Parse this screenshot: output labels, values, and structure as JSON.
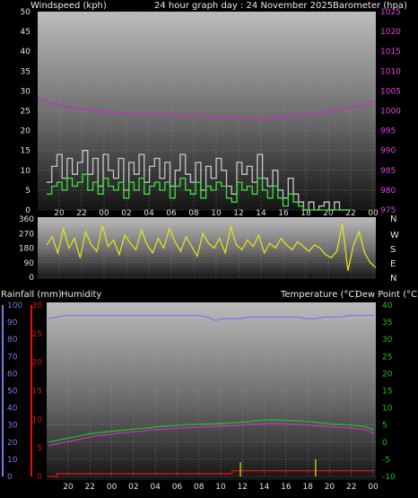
{
  "header": {
    "windspeed_label": "Windspeed (kph)",
    "graph_title": "24 hour graph day : 24 November 2025",
    "barometer_label": "Barometer (hpa)"
  },
  "middle": {
    "dir_labels": [
      "N",
      "W",
      "S",
      "E",
      "N"
    ]
  },
  "bottom_header": {
    "rain_label": "Rainfall (mm)",
    "humidity_label": "Humidity",
    "temperature_label": "Temperature (°C)",
    "dewpoint_label": "Dew Point (°C)"
  },
  "colors": {
    "wind_gust": "#c8c8c8",
    "wind_avg": "#40e040",
    "barometer": "#c030c0",
    "direction": "#e0e020",
    "humidity": "#7a7ae6",
    "temperature": "#20c020",
    "dewpoint": "#c030c0",
    "rain": "#e01010",
    "rain_rate": "#e0e020"
  },
  "chart_data": [
    {
      "type": "line",
      "name": "wind-barometer",
      "x_ticks": [
        "20",
        "22",
        "00",
        "02",
        "04",
        "06",
        "08",
        "10",
        "12",
        "14",
        "16",
        "18",
        "20",
        "22",
        "00"
      ],
      "y_left_ticks": [
        "0",
        "5",
        "10",
        "15",
        "20",
        "25",
        "30",
        "35",
        "40",
        "45",
        "50"
      ],
      "y_left_range": [
        0,
        50
      ],
      "y_right_ticks": [
        "975",
        "980",
        "985",
        "990",
        "995",
        "1000",
        "1005",
        "1010",
        "1015",
        "1020",
        "1025"
      ],
      "y_right_range": [
        975,
        1025
      ],
      "barometer": [
        1003,
        1002,
        1001,
        1000.5,
        1000,
        999.8,
        999.5,
        999.3,
        999.2,
        999,
        998.9,
        998.8,
        998.7,
        998.5,
        998.3,
        998,
        998,
        998.2,
        998.6,
        999,
        999.5,
        1000,
        1000.6,
        1001.5,
        1002.5
      ],
      "wind_gust": [
        7,
        11,
        14,
        8,
        13,
        9,
        12,
        15,
        9,
        13,
        6,
        14,
        10,
        8,
        13,
        5,
        12,
        9,
        14,
        7,
        11,
        13,
        8,
        12,
        6,
        10,
        14,
        9,
        7,
        12,
        5,
        11,
        8,
        13,
        10,
        6,
        4,
        12,
        9,
        11,
        7,
        14,
        8,
        6,
        10,
        5,
        3,
        8,
        4,
        2,
        0,
        2,
        0,
        1,
        2,
        0,
        2,
        0,
        0,
        0
      ],
      "wind_avg": [
        4,
        6,
        7,
        5,
        8,
        6,
        7,
        9,
        5,
        7,
        4,
        8,
        6,
        5,
        7,
        3,
        7,
        5,
        8,
        4,
        6,
        7,
        5,
        7,
        3,
        6,
        8,
        5,
        4,
        7,
        3,
        6,
        5,
        7,
        6,
        3,
        2,
        7,
        5,
        6,
        4,
        8,
        5,
        3,
        6,
        3,
        1,
        4,
        2,
        1,
        0,
        0,
        0,
        0,
        0,
        0,
        0,
        0,
        0,
        0
      ]
    },
    {
      "type": "line",
      "name": "wind-direction",
      "y_ticks": [
        "0",
        "90",
        "180",
        "270",
        "360"
      ],
      "y_range": [
        0,
        360
      ],
      "values": [
        200,
        250,
        150,
        300,
        180,
        240,
        120,
        280,
        200,
        160,
        320,
        190,
        230,
        140,
        260,
        210,
        170,
        290,
        200,
        150,
        240,
        180,
        300,
        220,
        160,
        250,
        190,
        130,
        270,
        210,
        180,
        240,
        150,
        310,
        200,
        170,
        230,
        190,
        260,
        150,
        210,
        180,
        240,
        200,
        170,
        220,
        190,
        160,
        200,
        180,
        140,
        120,
        160,
        330,
        40,
        200,
        280,
        150,
        90,
        60
      ]
    },
    {
      "type": "line",
      "name": "temp-humidity-rain",
      "y_humidity_ticks": [
        "0",
        "10",
        "20",
        "30",
        "40",
        "50",
        "60",
        "70",
        "80",
        "90",
        "100"
      ],
      "y_humidity_range": [
        0,
        100
      ],
      "y_rain_ticks": [
        "0",
        "5",
        "10",
        "15",
        "20",
        "25",
        "30"
      ],
      "y_rain_range": [
        0,
        30
      ],
      "y_temp_ticks": [
        "-10",
        "-5",
        "0",
        "5",
        "10",
        "15",
        "20",
        "25",
        "30",
        "35",
        "40"
      ],
      "y_temp_range": [
        -10,
        40
      ],
      "humidity": [
        92,
        93,
        94,
        94,
        94,
        94,
        94,
        94,
        94,
        94,
        94,
        94,
        94,
        94,
        94,
        94,
        94,
        94,
        94,
        93,
        91,
        92,
        92,
        92,
        93,
        93,
        93,
        93,
        93,
        93,
        93,
        92,
        92,
        93,
        93,
        93,
        94,
        94,
        94,
        94
      ],
      "temperature": [
        0,
        0.5,
        1,
        1.5,
        2,
        2.5,
        2.8,
        3,
        3.3,
        3.5,
        3.8,
        4,
        4.2,
        4.5,
        4.6,
        4.8,
        5,
        5.2,
        5.3,
        5.3,
        5.4,
        5.5,
        5.6,
        5.8,
        6,
        6.3,
        6.5,
        6.5,
        6.4,
        6.3,
        6.2,
        6,
        5.8,
        5.5,
        5.3,
        5.2,
        5,
        4.8,
        4.5,
        3.5
      ],
      "dewpoint": [
        -1,
        -0.5,
        0,
        0.5,
        1,
        1.5,
        2,
        2.2,
        2.5,
        2.8,
        3,
        3.2,
        3.5,
        3.7,
        3.8,
        4,
        4.2,
        4.3,
        4.4,
        4.5,
        4.6,
        4.7,
        4.8,
        5,
        5.2,
        5.3,
        5.4,
        5.5,
        5.4,
        5.3,
        5.2,
        5,
        4.8,
        4.6,
        4.4,
        4.3,
        4.1,
        3.9,
        3.6,
        2.5
      ],
      "rain_total": [
        0,
        0.5,
        0.5,
        0.5,
        0.5,
        0.5,
        0.5,
        0.5,
        0.5,
        0.5,
        0.5,
        0.5,
        0.5,
        0.5,
        0.5,
        0.5,
        0.5,
        0.5,
        0.5,
        0.5,
        0.5,
        0.5,
        1,
        1,
        1,
        1,
        1,
        1,
        1,
        1,
        1,
        1,
        1,
        1,
        1,
        1,
        1,
        1,
        1,
        1
      ],
      "rain_rate_spikes": [
        {
          "index": 23,
          "value": 2.5
        },
        {
          "index": 32,
          "value": 3
        }
      ]
    }
  ]
}
